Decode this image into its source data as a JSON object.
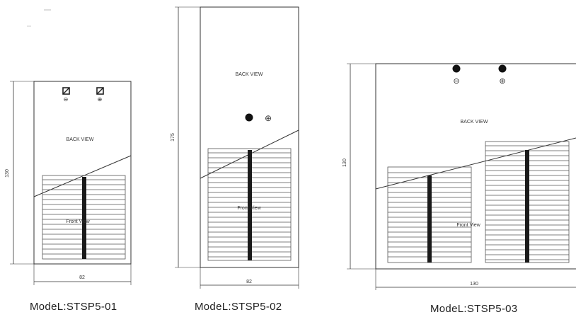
{
  "panels": [
    {
      "model": "ModeL:STSP5-01",
      "back_label": "BACK VIEW",
      "front_label": "Front View",
      "height_dim": "130",
      "width_dim": "82",
      "terminal_left": "⊖",
      "terminal_right": "⊕"
    },
    {
      "model": "ModeL:STSP5-02",
      "back_label": "BACK VIEW",
      "front_label": "Front View",
      "height_dim": "175",
      "width_dim": "82",
      "terminal_right": "⊕"
    },
    {
      "model": "ModeL:STSP5-03",
      "back_label": "BACK VIEW",
      "front_label": "Front View",
      "height_dim": "130",
      "width_dim": "130",
      "terminal_left": "⊖",
      "terminal_right": "⊕"
    }
  ],
  "colors": {
    "line": "#333333",
    "fin": "#555555",
    "bar": "#1a1a1a"
  }
}
